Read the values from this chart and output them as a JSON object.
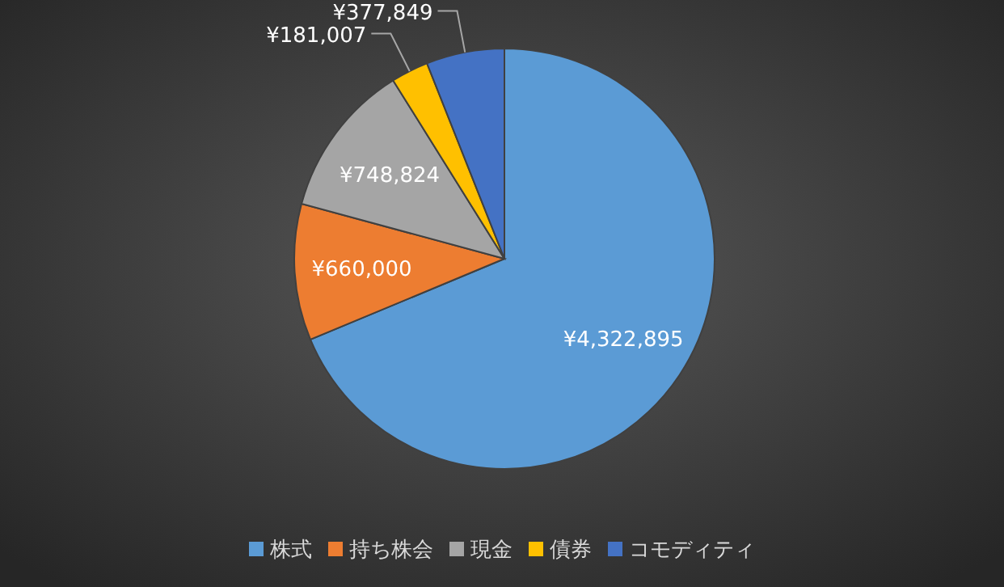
{
  "chart_data": {
    "type": "pie",
    "categories": [
      "株式",
      "持ち株会",
      "現金",
      "債券",
      "コモディティ"
    ],
    "values": [
      4322895,
      660000,
      748824,
      181007,
      377849
    ],
    "value_labels": [
      "¥4,322,895",
      "¥660,000",
      "¥748,824",
      "¥181,007",
      "¥377,849"
    ],
    "colors": [
      "#5b9bd5",
      "#ed7d31",
      "#a5a5a5",
      "#ffc000",
      "#4472c4"
    ],
    "legend": "bottom"
  }
}
